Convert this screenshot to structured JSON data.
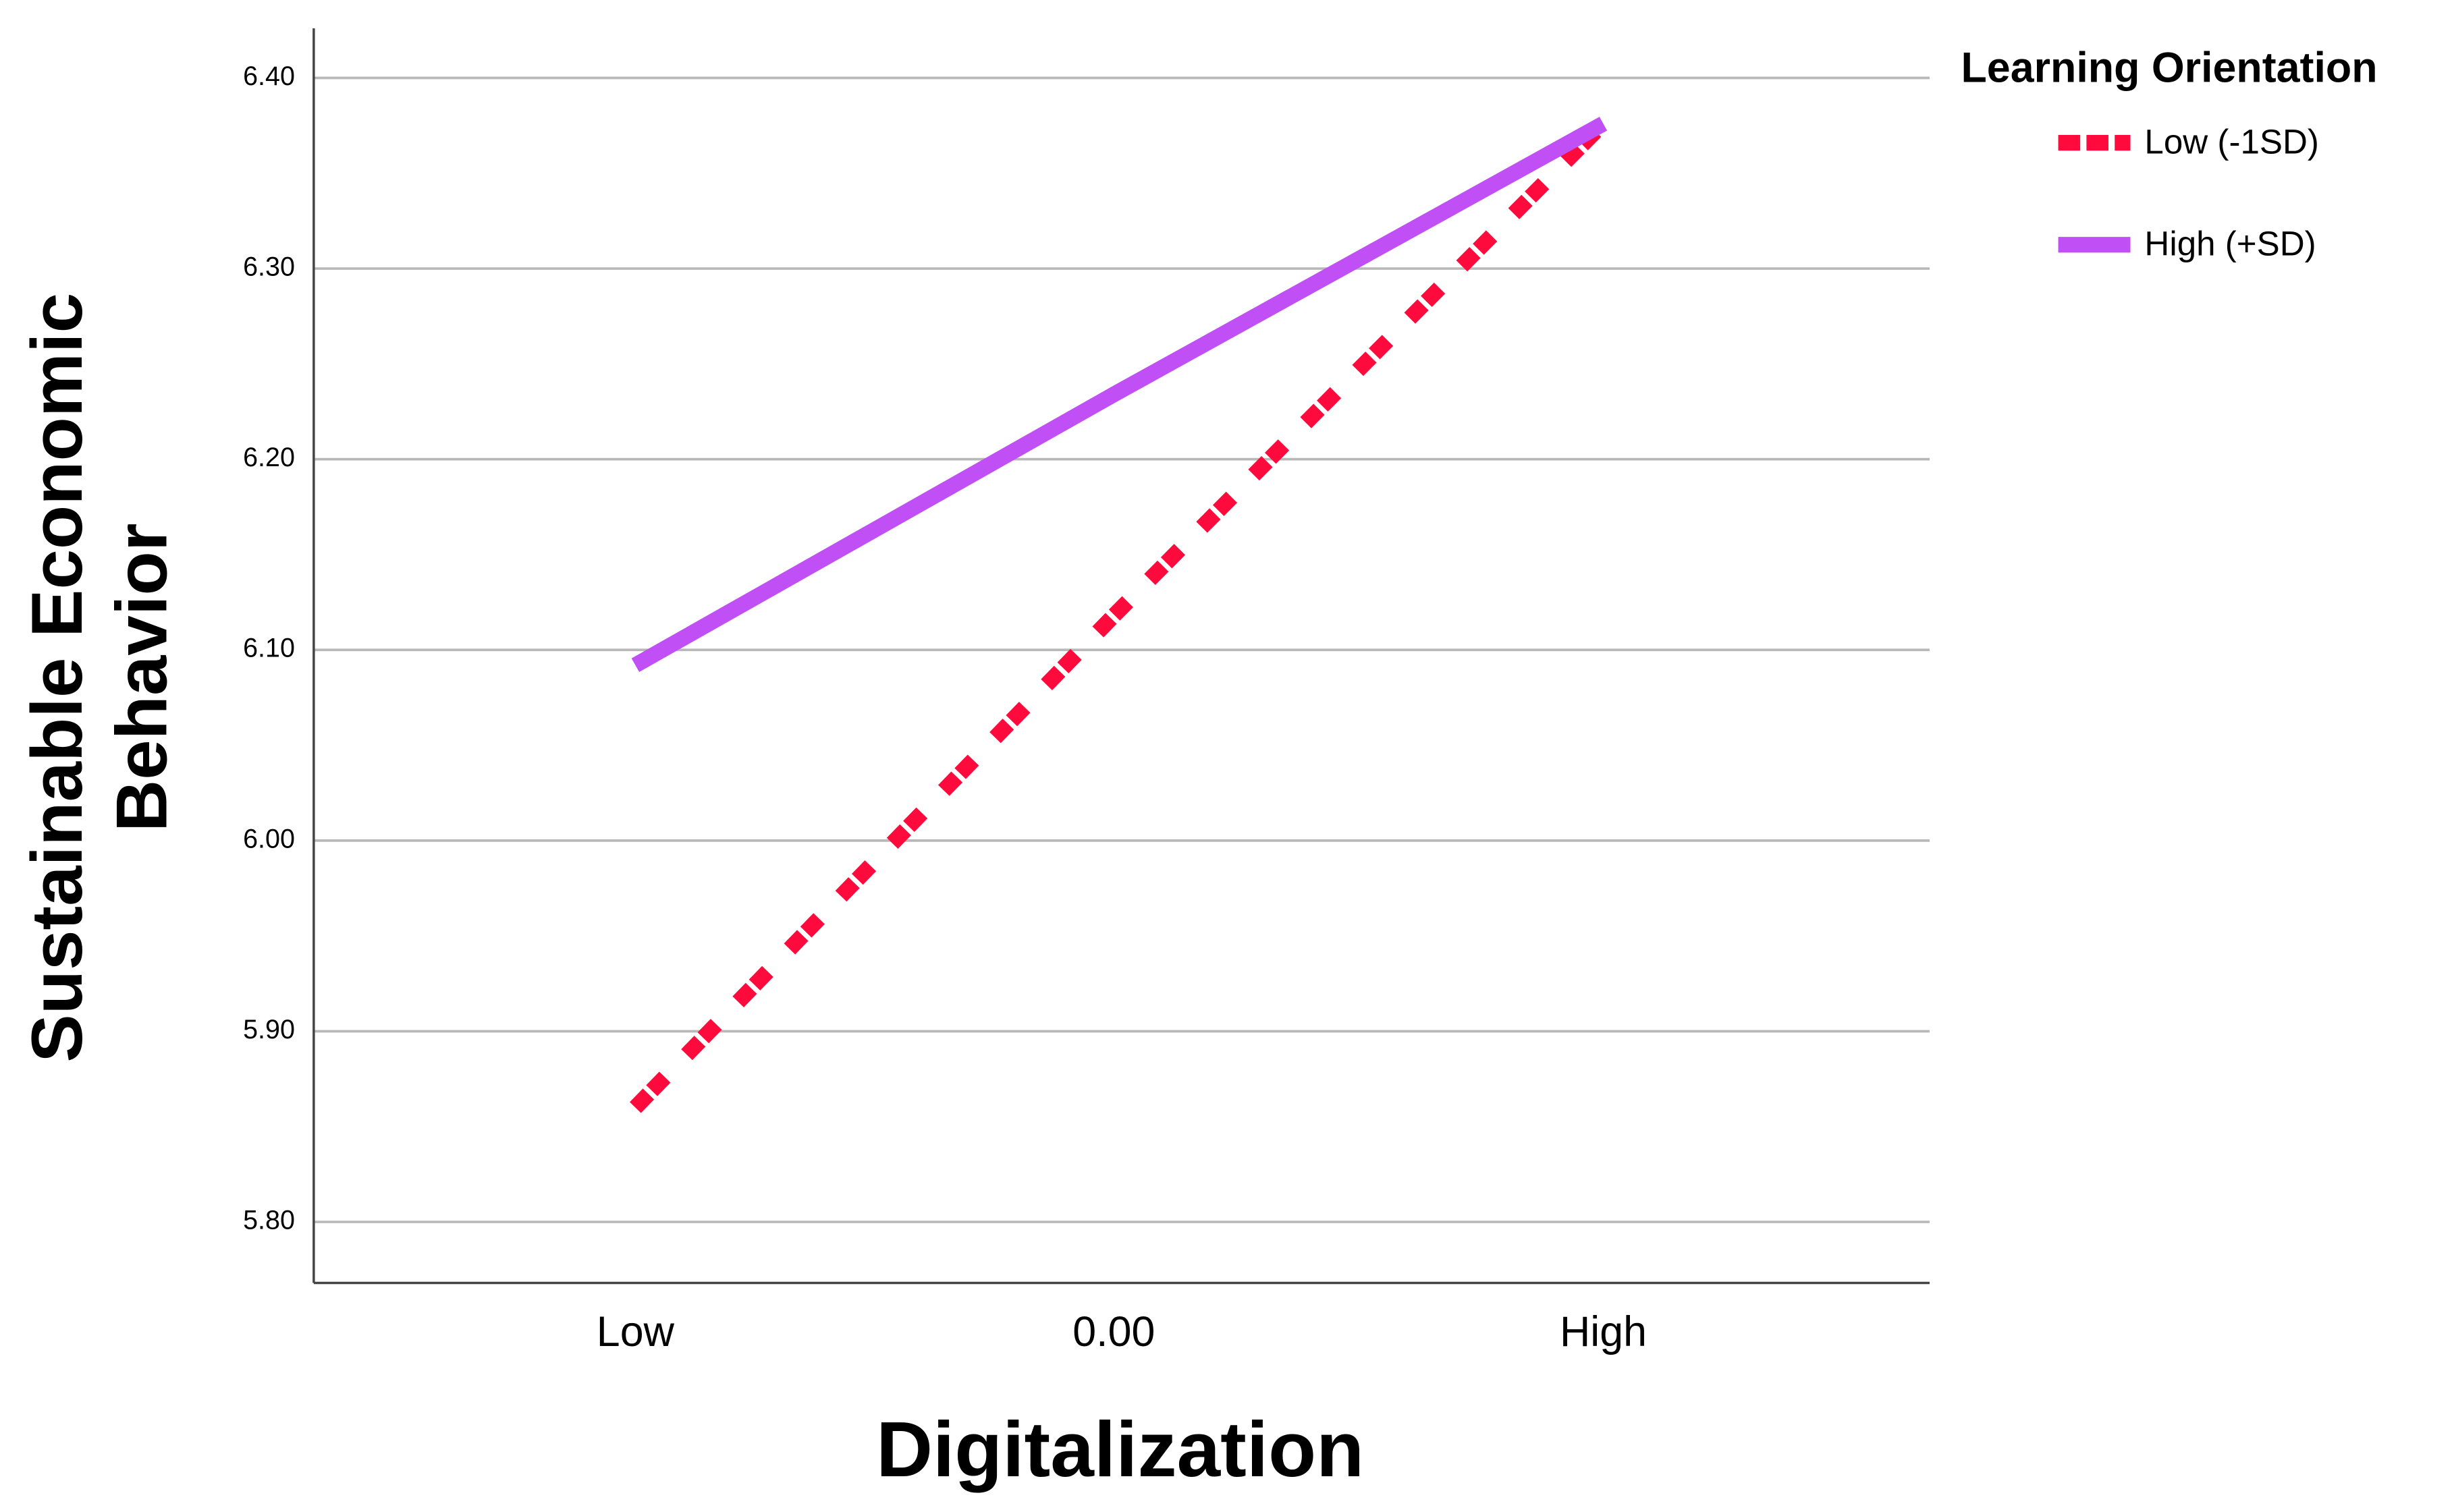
{
  "chart_data": {
    "type": "line",
    "x_label": "Digitalization",
    "y_label": [
      "Sustainable Economic",
      "Behavior"
    ],
    "legend_title": "Learning Orientation",
    "categories": [
      "Low",
      "0.00",
      "High"
    ],
    "series": [
      {
        "name": "Low (-1SD)",
        "color": "#ff0a3c",
        "dash": true,
        "values": [
          5.86,
          6.118,
          6.376
        ]
      },
      {
        "name": "High (+SD)",
        "color": "#c050f5",
        "dash": false,
        "values": [
          6.092,
          6.234,
          6.376
        ]
      }
    ],
    "ylim": [
      5.768,
      6.426
    ],
    "yticks": [
      {
        "value": 5.8,
        "label": "5.80"
      },
      {
        "value": 5.9,
        "label": "5.90"
      },
      {
        "value": 6.0,
        "label": "6.00"
      },
      {
        "value": 6.1,
        "label": "6.10"
      },
      {
        "value": 6.2,
        "label": "6.20"
      },
      {
        "value": 6.3,
        "label": "6.30"
      },
      {
        "value": 6.4,
        "label": "6.40"
      }
    ],
    "grid": true,
    "legend": "right"
  }
}
